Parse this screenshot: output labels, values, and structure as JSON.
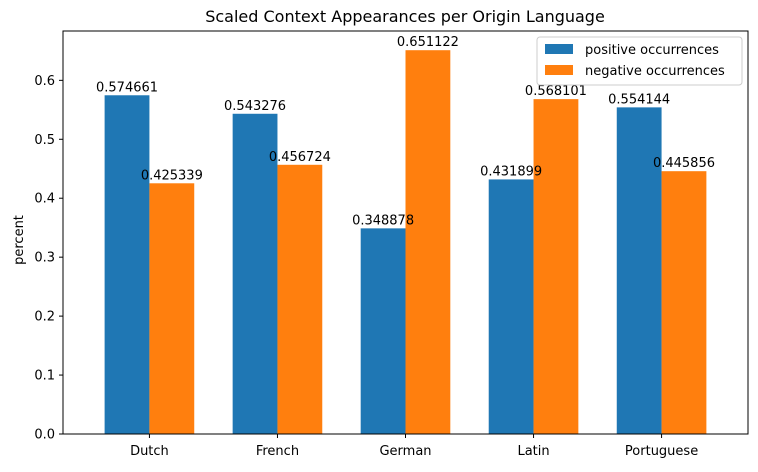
{
  "chart_data": {
    "type": "bar",
    "title": "Scaled Context Appearances per Origin Language",
    "xlabel": "",
    "ylabel": "percent",
    "categories": [
      "Dutch",
      "French",
      "German",
      "Latin",
      "Portuguese"
    ],
    "series": [
      {
        "name": "positive occurrences",
        "color": "#1f77b4",
        "values": [
          0.574661,
          0.543276,
          0.348878,
          0.431899,
          0.554144
        ],
        "labels": [
          "0.574661",
          "0.543276",
          "0.348878",
          "0.431899",
          "0.554144"
        ]
      },
      {
        "name": "negative occurrences",
        "color": "#ff7f0e",
        "values": [
          0.425339,
          0.456724,
          0.651122,
          0.568101,
          0.445856
        ],
        "labels": [
          "0.425339",
          "0.456724",
          "0.651122",
          "0.568101",
          "0.445856"
        ]
      }
    ],
    "ylim": [
      0,
      0.6837
    ],
    "yticks": [
      0.0,
      0.1,
      0.2,
      0.3,
      0.4,
      0.5,
      0.6
    ],
    "ytick_labels": [
      "0.0",
      "0.1",
      "0.2",
      "0.3",
      "0.4",
      "0.5",
      "0.6"
    ],
    "grid": false,
    "legend_position": "top-right"
  }
}
